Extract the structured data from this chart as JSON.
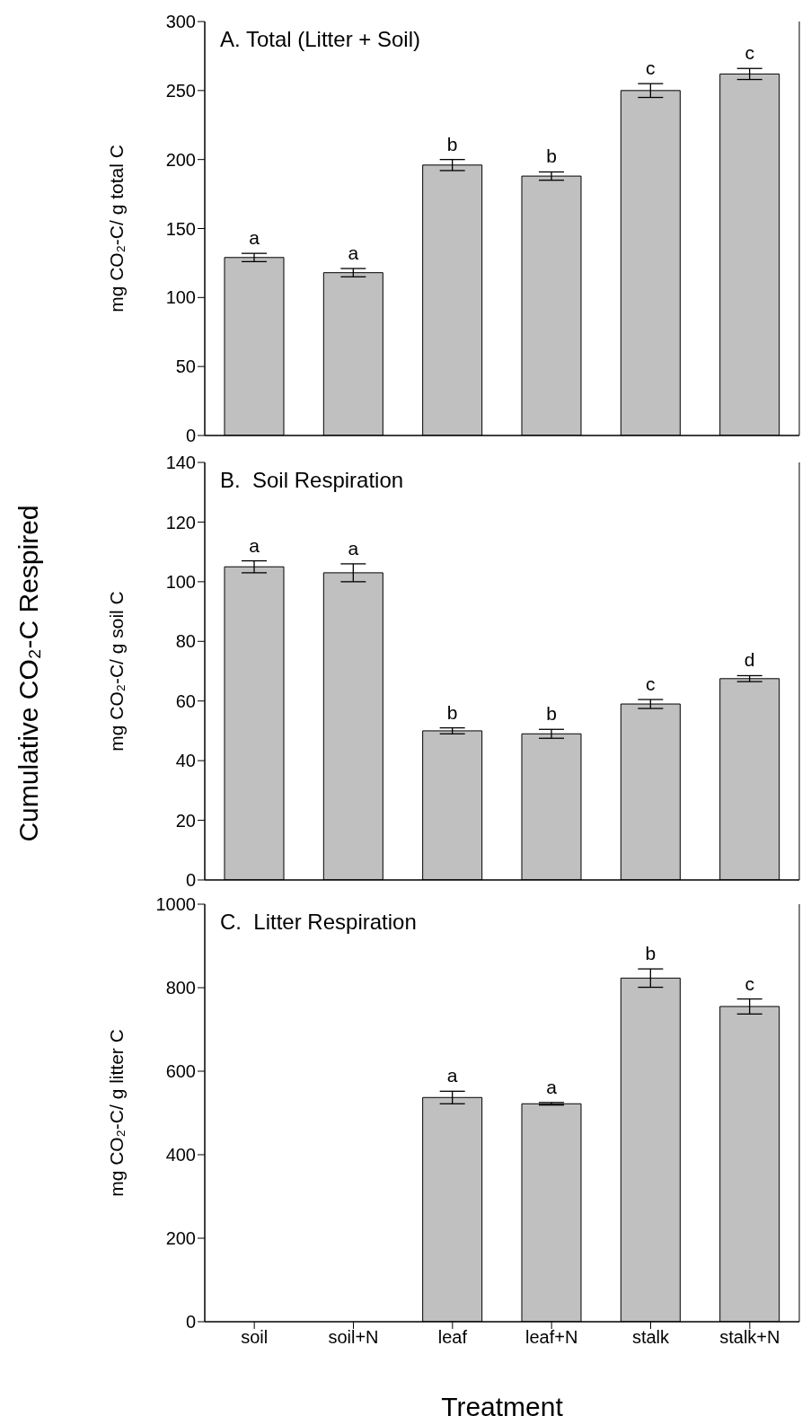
{
  "chart_data": [
    {
      "type": "bar",
      "title": "A. Total (Litter + Soil)",
      "ylabel": "mg CO₂-C/ g total C",
      "categories": [
        null,
        null,
        null,
        null,
        null,
        null
      ],
      "values": [
        129,
        118,
        196,
        188,
        250,
        262
      ],
      "errors": [
        3,
        3,
        4,
        3,
        5,
        4
      ],
      "color": "#c0c0c0",
      "ylim": [
        0,
        300
      ],
      "yticks": [
        0,
        50,
        100,
        150,
        200,
        250,
        300
      ],
      "tick_labels": "y",
      "annotations": [
        "Cumulative CO₂-C Respired",
        "a",
        "a",
        "b",
        "b",
        "c",
        "c"
      ]
    },
    {
      "type": "bar",
      "title": "B.  Soil Respiration",
      "ylabel": "mg CO₂-C/ g soil C",
      "categories": [
        null,
        null,
        null,
        null,
        null,
        null
      ],
      "values": [
        105,
        103,
        50,
        49,
        59,
        67.5
      ],
      "errors": [
        2,
        3,
        1,
        1.5,
        1.5,
        1
      ],
      "color": "#c0c0c0",
      "ylim": [
        0,
        140
      ],
      "yticks": [
        0,
        20,
        40,
        60,
        80,
        100,
        120,
        140
      ],
      "tick_labels": "y",
      "annotations": [
        "a",
        "a",
        "b",
        "b",
        "c",
        "d"
      ]
    },
    {
      "type": "bar",
      "title": "C.  Litter Respiration",
      "ylabel": "mg CO₂-C/ g litter C",
      "xlabel": "Treatment",
      "categories": [
        "soil",
        "soil+N",
        "leaf",
        "leaf+N",
        "stalk",
        "stalk+N"
      ],
      "values": [
        null,
        null,
        537,
        522,
        823,
        755
      ],
      "errors": [
        null,
        null,
        15,
        3,
        22,
        18
      ],
      "color": "#c0c0c0",
      "ylim": [
        0,
        1000
      ],
      "yticks": [
        0,
        200,
        400,
        600,
        800,
        1000
      ],
      "annotations": [
        "a",
        "a",
        "b",
        "c"
      ]
    }
  ]
}
